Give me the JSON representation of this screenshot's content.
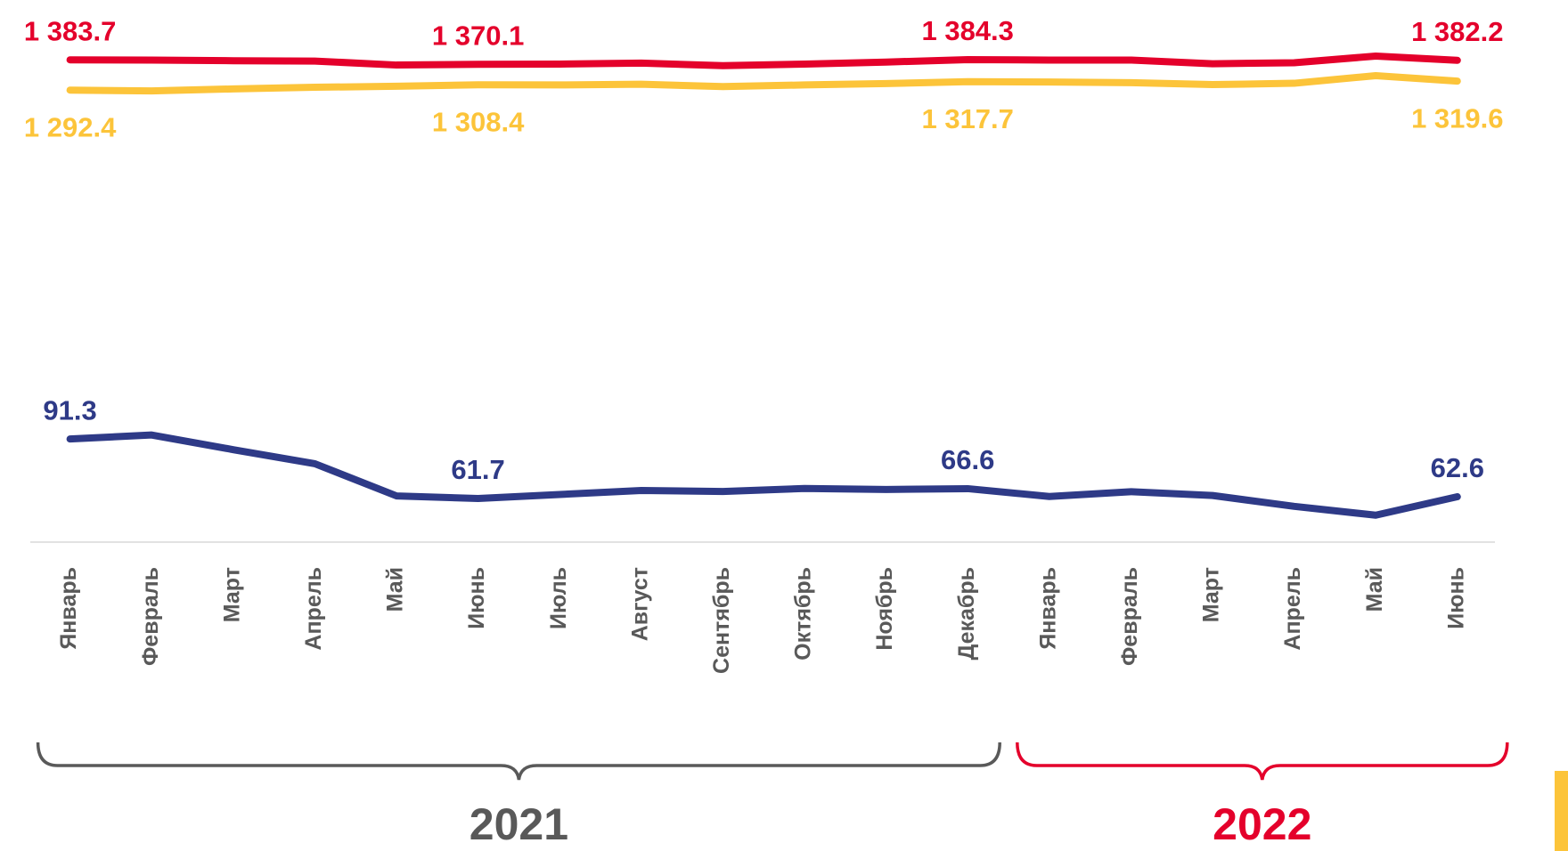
{
  "chart_data": {
    "type": "line",
    "categories": [
      "Январь",
      "Февраль",
      "Март",
      "Апрель",
      "Май",
      "Июнь",
      "Июль",
      "Август",
      "Сентябрь",
      "Октябрь",
      "Ноябрь",
      "Декабрь",
      "Январь",
      "Февраль",
      "Март",
      "Апрель",
      "Май",
      "Июнь"
    ],
    "groups": [
      {
        "label": "2021",
        "color": "#595959",
        "from": 0,
        "to": 11
      },
      {
        "label": "2022",
        "color": "#e4002b",
        "from": 12,
        "to": 17
      }
    ],
    "series": [
      {
        "color": "#e4002b",
        "ylim": [
          -70,
          1505
        ],
        "label_side": "above",
        "values": [
          1383.7,
          1383,
          1381,
          1380,
          1368,
          1370.1,
          1371,
          1374,
          1366,
          1371,
          1377,
          1384.3,
          1383,
          1383,
          1372,
          1375,
          1395,
          1382.2
        ],
        "value_labels": [
          "1 383.7",
          null,
          null,
          null,
          null,
          "1 370.1",
          null,
          null,
          null,
          null,
          null,
          "1 384.3",
          null,
          null,
          null,
          null,
          null,
          "1 382.2"
        ]
      },
      {
        "color": "#fcc43a",
        "ylim": [
          -70,
          1505
        ],
        "label_side": "below",
        "values": [
          1292.4,
          1290,
          1296,
          1301,
          1304,
          1308.4,
          1308,
          1310,
          1303,
          1308,
          1312,
          1317.7,
          1317,
          1315,
          1309,
          1313,
          1336,
          1319.6
        ],
        "value_labels": [
          "1 292.4",
          null,
          null,
          null,
          null,
          "1 308.4",
          null,
          null,
          null,
          null,
          null,
          "1 317.7",
          null,
          null,
          null,
          null,
          null,
          "1 319.6"
        ]
      },
      {
        "color": "#2e3a87",
        "ylim": [
          40,
          300
        ],
        "label_side": "above",
        "values": [
          91.3,
          93.3,
          86,
          79,
          63,
          61.7,
          63.7,
          65.7,
          65.2,
          66.7,
          66.2,
          66.6,
          62.7,
          65.1,
          63.2,
          57.8,
          53.4,
          62.6
        ],
        "value_labels": [
          "91.3",
          null,
          null,
          null,
          null,
          "61.7",
          null,
          null,
          null,
          null,
          null,
          "66.6",
          null,
          null,
          null,
          null,
          null,
          "62.6"
        ]
      }
    ]
  }
}
